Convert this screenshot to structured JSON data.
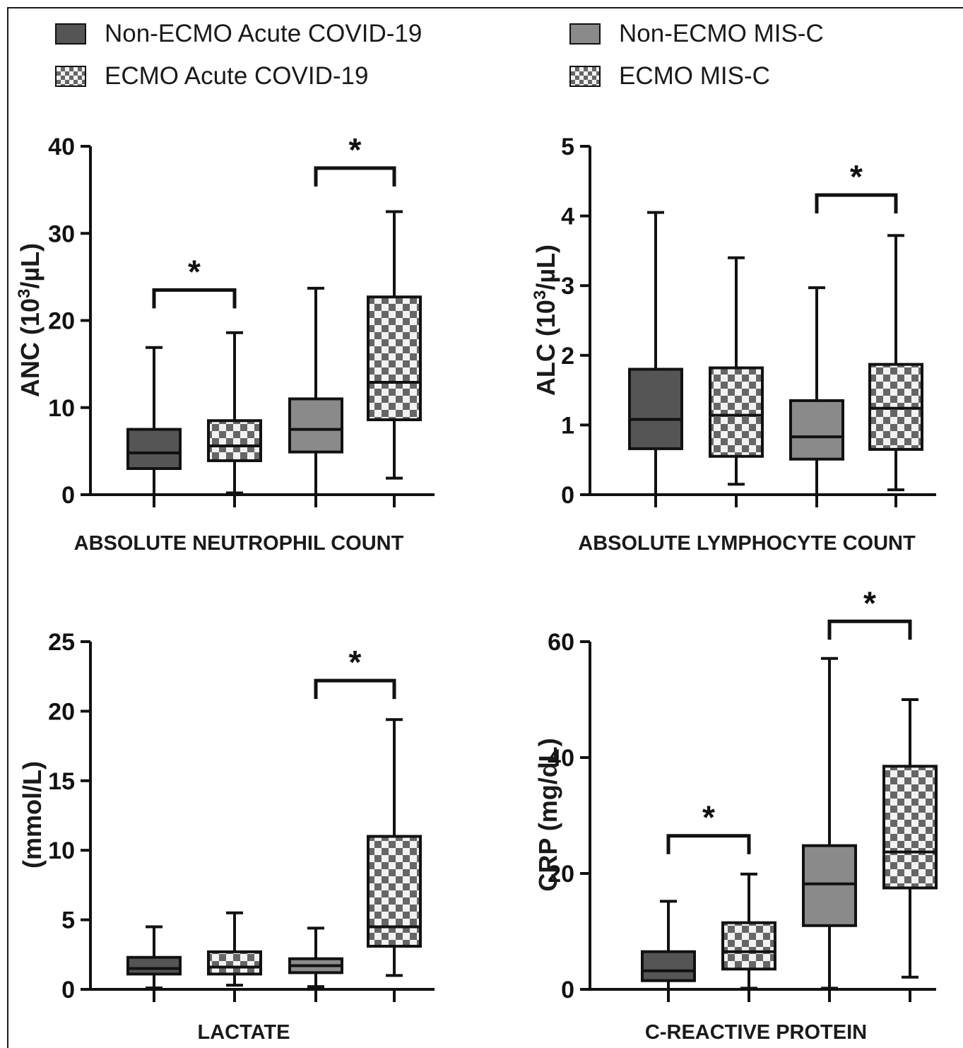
{
  "legend": {
    "items": [
      {
        "label": "Non-ECMO Acute COVID-19",
        "fill": "#555555",
        "pattern": "solid"
      },
      {
        "label": "ECMO Acute COVID-19",
        "fill": "checker",
        "pattern": "checker"
      },
      {
        "label": "Non-ECMO MIS-C",
        "fill": "#8a8a8a",
        "pattern": "solid"
      },
      {
        "label": "ECMO MIS-C",
        "fill": "checker",
        "pattern": "checker"
      }
    ]
  },
  "colors": {
    "nonEcmoAcute": "#555555",
    "nonEcmoMisc": "#8a8a8a",
    "checkerDark": "#666666",
    "checkerLight": "#f2f2f2",
    "ink": "#111111"
  },
  "chart_data": [
    {
      "type": "boxplot",
      "title": "ABSOLUTE NEUTROPHIL COUNT",
      "ylabel_main": "ANC (10",
      "ylabel_sup": "3",
      "ylabel_end": "/µL)",
      "ylim": [
        0,
        40
      ],
      "yticks": [
        0,
        10,
        20,
        30,
        40
      ],
      "groups": [
        "Non-ECMO Acute COVID-19",
        "ECMO Acute COVID-19",
        "Non-ECMO MIS-C",
        "ECMO MIS-C"
      ],
      "boxes": [
        {
          "min": 0,
          "q1": 3,
          "median": 4.8,
          "q3": 7.5,
          "max": 16.9
        },
        {
          "min": 0.2,
          "q1": 3.9,
          "median": 5.6,
          "q3": 8.5,
          "max": 18.6
        },
        {
          "min": 0,
          "q1": 4.9,
          "median": 7.5,
          "q3": 11.0,
          "max": 23.7
        },
        {
          "min": 1.9,
          "q1": 8.6,
          "median": 12.9,
          "q3": 22.7,
          "max": 32.5
        }
      ],
      "significance": [
        {
          "from": 0,
          "to": 1,
          "y": 23.5,
          "label": "*"
        },
        {
          "from": 2,
          "to": 3,
          "y": 37.5,
          "label": "*"
        }
      ]
    },
    {
      "type": "boxplot",
      "title": "ABSOLUTE LYMPHOCYTE COUNT",
      "ylabel_main": "ALC (10",
      "ylabel_sup": "3",
      "ylabel_end": "/µL)",
      "ylim": [
        0,
        5
      ],
      "yticks": [
        0,
        1,
        2,
        3,
        4,
        5
      ],
      "groups": [
        "Non-ECMO Acute COVID-19",
        "ECMO Acute COVID-19",
        "Non-ECMO MIS-C",
        "ECMO MIS-C"
      ],
      "boxes": [
        {
          "min": 0,
          "q1": 0.66,
          "median": 1.08,
          "q3": 1.8,
          "max": 4.05
        },
        {
          "min": 0.15,
          "q1": 0.55,
          "median": 1.14,
          "q3": 1.82,
          "max": 3.4
        },
        {
          "min": 0,
          "q1": 0.51,
          "median": 0.83,
          "q3": 1.35,
          "max": 2.97
        },
        {
          "min": 0.07,
          "q1": 0.65,
          "median": 1.24,
          "q3": 1.87,
          "max": 3.72
        }
      ],
      "significance": [
        {
          "from": 2,
          "to": 3,
          "y": 4.3,
          "label": "*"
        }
      ]
    },
    {
      "type": "boxplot",
      "title": "LACTATE",
      "ylabel_main": "(mmol/L)",
      "ylabel_sup": "",
      "ylabel_end": "",
      "ylim": [
        0,
        25
      ],
      "yticks": [
        0,
        5,
        10,
        15,
        20,
        25
      ],
      "groups": [
        "Non-ECMO Acute COVID-19",
        "ECMO Acute COVID-19",
        "Non-ECMO MIS-C",
        "ECMO MIS-C"
      ],
      "boxes": [
        {
          "min": 0.1,
          "q1": 1.1,
          "median": 1.5,
          "q3": 2.3,
          "max": 4.5
        },
        {
          "min": 0.3,
          "q1": 1.1,
          "median": 1.6,
          "q3": 2.7,
          "max": 5.5
        },
        {
          "min": 0.2,
          "q1": 1.2,
          "median": 1.7,
          "q3": 2.2,
          "max": 4.4
        },
        {
          "min": 1.0,
          "q1": 3.1,
          "median": 4.5,
          "q3": 11.0,
          "max": 19.4
        }
      ],
      "significance": [
        {
          "from": 2,
          "to": 3,
          "y": 22.2,
          "label": "*"
        }
      ]
    },
    {
      "type": "boxplot",
      "title": "C-REACTIVE PROTEIN",
      "ylabel_main": "CRP (mg/dL)",
      "ylabel_sup": "",
      "ylabel_end": "",
      "ylim": [
        0,
        60
      ],
      "yticks": [
        0,
        20,
        40,
        60
      ],
      "groups": [
        "Non-ECMO Acute COVID-19",
        "ECMO Acute COVID-19",
        "Non-ECMO MIS-C",
        "ECMO MIS-C"
      ],
      "boxes": [
        {
          "min": 0,
          "q1": 1.5,
          "median": 3.2,
          "q3": 6.5,
          "max": 15.2
        },
        {
          "min": 0.2,
          "q1": 3.5,
          "median": 6.5,
          "q3": 11.5,
          "max": 19.9
        },
        {
          "min": 0.2,
          "q1": 11.0,
          "median": 18.2,
          "q3": 24.8,
          "max": 57.1
        },
        {
          "min": 2.1,
          "q1": 17.5,
          "median": 23.7,
          "q3": 38.5,
          "max": 50.0
        }
      ],
      "significance": [
        {
          "from": 0,
          "to": 1,
          "y": 26.5,
          "label": "*"
        },
        {
          "from": 2,
          "to": 3,
          "y": 63.5,
          "label": "*"
        }
      ]
    }
  ]
}
